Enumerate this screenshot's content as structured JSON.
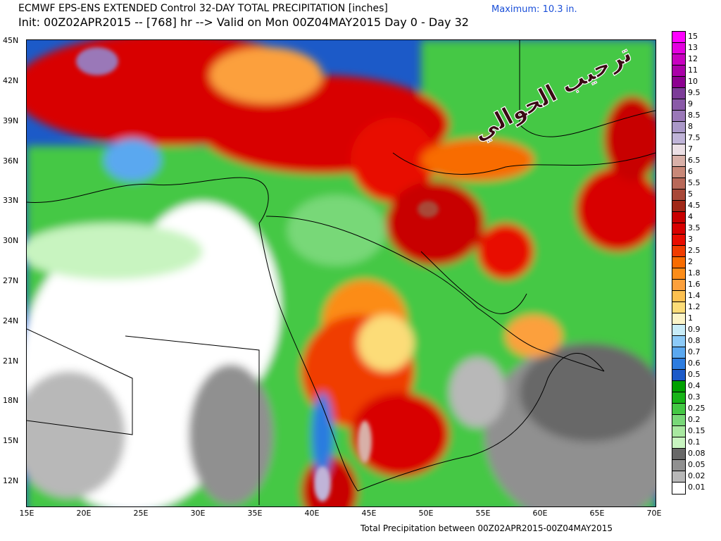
{
  "header": {
    "title_line1": "ECMWF EPS-ENS EXTENDED Control 32-DAY TOTAL PRECIPITATION [inches]",
    "title_line2": "Init: 00Z02APR2015 -- [768] hr --> Valid on Mon 00Z04MAY2015  Day 0 - Day 32",
    "maximum": "Maximum:  10.3 in."
  },
  "footer": {
    "caption": "Total Precipitation between 00Z02APR2015-00Z04MAY2015"
  },
  "watermark": {
    "text": "ترحيب الحوالي"
  },
  "axes": {
    "lat_labels": [
      "45N",
      "42N",
      "39N",
      "36N",
      "33N",
      "30N",
      "27N",
      "24N",
      "21N",
      "18N",
      "15N",
      "12N"
    ],
    "lon_labels": [
      "15E",
      "20E",
      "25E",
      "30E",
      "35E",
      "40E",
      "45E",
      "50E",
      "55E",
      "60E",
      "65E",
      "70E"
    ]
  },
  "legend": {
    "levels": [
      "15",
      "13",
      "12",
      "11",
      "10",
      "9.5",
      "9",
      "8.5",
      "8",
      "7.5",
      "7",
      "6.5",
      "6",
      "5.5",
      "5",
      "4.5",
      "4",
      "3.5",
      "3",
      "2.5",
      "2",
      "1.8",
      "1.6",
      "1.4",
      "1.2",
      "1",
      "0.9",
      "0.8",
      "0.7",
      "0.6",
      "0.5",
      "0.4",
      "0.3",
      "0.25",
      "0.2",
      "0.15",
      "0.1",
      "0.08",
      "0.05",
      "0.02",
      "0.01"
    ],
    "colors": [
      "#ff00ff",
      "#e400e0",
      "#c800c0",
      "#aa00a8",
      "#8c0090",
      "#7c3c98",
      "#8a5aa8",
      "#9a78b8",
      "#aa98c8",
      "#c0b4d8",
      "#ece0e6",
      "#d8b0a8",
      "#c88878",
      "#b86858",
      "#a84838",
      "#a02818",
      "#c80000",
      "#d80000",
      "#e80c00",
      "#f03c00",
      "#f86c00",
      "#fc8c18",
      "#fca03c",
      "#fcc050",
      "#fcdc78",
      "#fcf4c8",
      "#c8ecf8",
      "#8ccaf8",
      "#5aa8f0",
      "#2c7ce0",
      "#1c5ac8",
      "#00a000",
      "#18b418",
      "#44c844",
      "#78d878",
      "#a8e8a0",
      "#c8f4c0",
      "#686868",
      "#909090",
      "#b8b8b8",
      "#ffffff"
    ]
  }
}
